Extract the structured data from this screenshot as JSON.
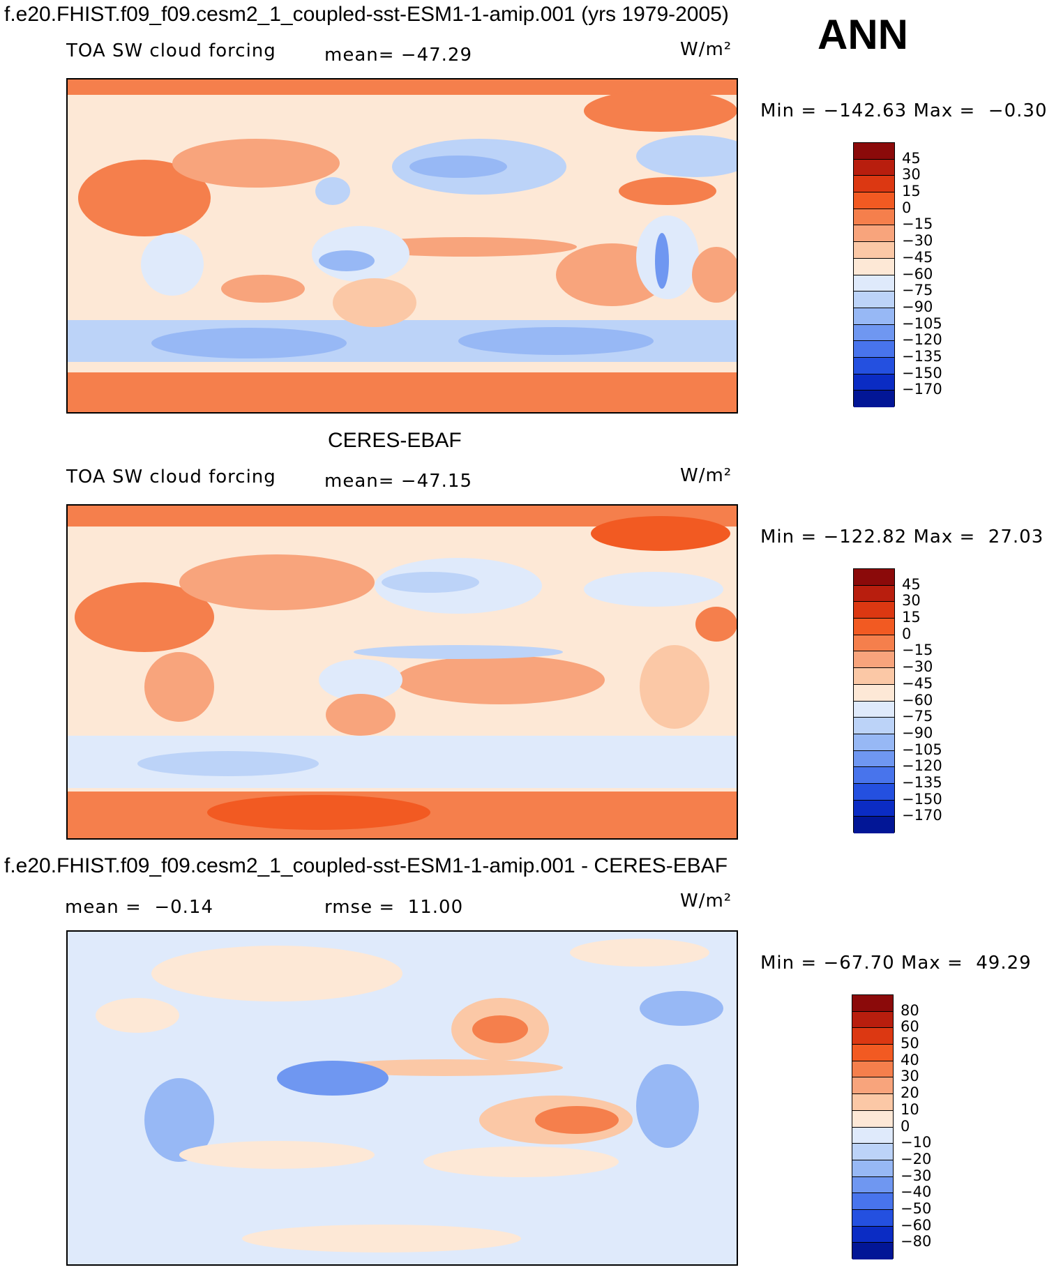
{
  "header": {
    "case_title": "f.e20.FHIST.f09_f09.cesm2_1_coupled-sst-ESM1-1-amip.001 (yrs 1979-2005)",
    "season": "ANN"
  },
  "panels": [
    {
      "variable": "TOA SW cloud forcing",
      "stat1": "mean= −47.29",
      "units": "W/m²",
      "minmax": "Min = −142.63 Max =  −0.30"
    },
    {
      "title": "CERES-EBAF",
      "variable": "TOA SW cloud forcing",
      "stat1": "mean= −47.15",
      "units": "W/m²",
      "minmax": "Min = −122.82 Max =  27.03"
    },
    {
      "title": "f.e20.FHIST.f09_f09.cesm2_1_coupled-sst-ESM1-1-amip.001 - CERES-EBAF",
      "stat1": "mean =  −0.14",
      "stat2": "rmse =  11.00",
      "units": "W/m²",
      "minmax": "Min = −67.70 Max =  49.29"
    }
  ],
  "colorbars": {
    "field": {
      "labels": [
        "45",
        "30",
        "15",
        "0",
        "−15",
        "−30",
        "−45",
        "−60",
        "−75",
        "−90",
        "−105",
        "−120",
        "−135",
        "−150",
        "−170"
      ],
      "colors": [
        "#8b0a0a",
        "#b81e0e",
        "#dc3812",
        "#f25a22",
        "#f57f4c",
        "#f8a47c",
        "#fbc8a6",
        "#fde8d6",
        "#dfeafb",
        "#bcd3f8",
        "#97b8f5",
        "#6f97f1",
        "#4874ec",
        "#2450e0",
        "#0b2cc4",
        "#021696"
      ]
    },
    "diff": {
      "labels": [
        "80",
        "60",
        "50",
        "40",
        "30",
        "20",
        "10",
        "0",
        "−10",
        "−20",
        "−30",
        "−40",
        "−50",
        "−60",
        "−80"
      ],
      "colors": [
        "#8b0a0a",
        "#b81e0e",
        "#dc3812",
        "#f25a22",
        "#f57f4c",
        "#f8a47c",
        "#fbc8a6",
        "#fde8d6",
        "#dfeafb",
        "#bcd3f8",
        "#97b8f5",
        "#6f97f1",
        "#4874ec",
        "#2450e0",
        "#0b2cc4",
        "#021696"
      ]
    }
  },
  "chart_data": [
    {
      "type": "heatmap",
      "title": "f.e20.FHIST.f09_f09.cesm2_1_coupled-sst-ESM1-1-amip.001 (yrs 1979-2005)",
      "subtitle": "TOA SW cloud forcing",
      "mean": -47.29,
      "min": -142.63,
      "max": -0.3,
      "units": "W/m2",
      "colorbar_levels": [
        45,
        30,
        15,
        0,
        -15,
        -30,
        -45,
        -60,
        -75,
        -90,
        -105,
        -120,
        -135,
        -150,
        -170
      ]
    },
    {
      "type": "heatmap",
      "title": "CERES-EBAF",
      "subtitle": "TOA SW cloud forcing",
      "mean": -47.15,
      "min": -122.82,
      "max": 27.03,
      "units": "W/m2",
      "colorbar_levels": [
        45,
        30,
        15,
        0,
        -15,
        -30,
        -45,
        -60,
        -75,
        -90,
        -105,
        -120,
        -135,
        -150,
        -170
      ]
    },
    {
      "type": "heatmap",
      "title": "f.e20.FHIST.f09_f09.cesm2_1_coupled-sst-ESM1-1-amip.001 - CERES-EBAF",
      "mean": -0.14,
      "rmse": 11.0,
      "min": -67.7,
      "max": 49.29,
      "units": "W/m2",
      "colorbar_levels": [
        80,
        60,
        50,
        40,
        30,
        20,
        10,
        0,
        -10,
        -20,
        -30,
        -40,
        -50,
        -60,
        -80
      ]
    }
  ]
}
